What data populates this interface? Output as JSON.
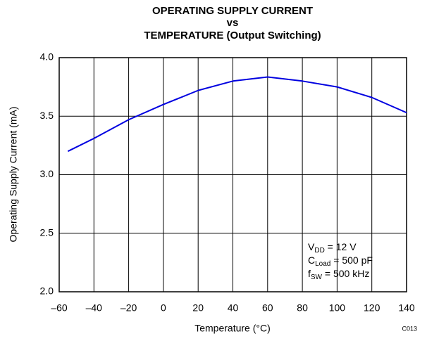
{
  "chart_data": {
    "type": "line",
    "title": [
      "OPERATING SUPPLY CURRENT",
      "vs",
      "TEMPERATURE (Output Switching)"
    ],
    "x_label": "Temperature (°C)",
    "y_label": "Operating Supply Current (mA)",
    "figure_id": "C013",
    "x": [
      -55,
      -40,
      -20,
      0,
      20,
      40,
      60,
      80,
      100,
      120,
      140
    ],
    "series": [
      {
        "name": "Supply Current",
        "color": "#0000e0",
        "values": [
          3.2,
          3.31,
          3.47,
          3.6,
          3.72,
          3.8,
          3.835,
          3.8,
          3.75,
          3.66,
          3.53
        ]
      }
    ],
    "xlim": [
      -60,
      140
    ],
    "xticks": [
      {
        "value": -60,
        "label": "–60"
      },
      {
        "value": -40,
        "label": "–40"
      },
      {
        "value": -20,
        "label": "–20"
      },
      0,
      20,
      40,
      60,
      80,
      100,
      120,
      140
    ],
    "ylim": [
      2,
      4
    ],
    "yticks": [
      {
        "value": 2,
        "label": "2.0"
      },
      {
        "value": 2.5,
        "label": "2.5"
      },
      {
        "value": 3,
        "label": "3.0"
      },
      {
        "value": 3.5,
        "label": "3.5"
      },
      {
        "value": 4,
        "label": "4.0"
      }
    ],
    "grid": true,
    "annotations": [
      {
        "main": "V",
        "sub": "DD",
        "rest": " = 12 V"
      },
      {
        "main": "C",
        "sub": "Load",
        "rest": " = 500 pF"
      },
      {
        "main": "f",
        "sub": "SW",
        "rest": " = 500 kHz"
      }
    ]
  }
}
